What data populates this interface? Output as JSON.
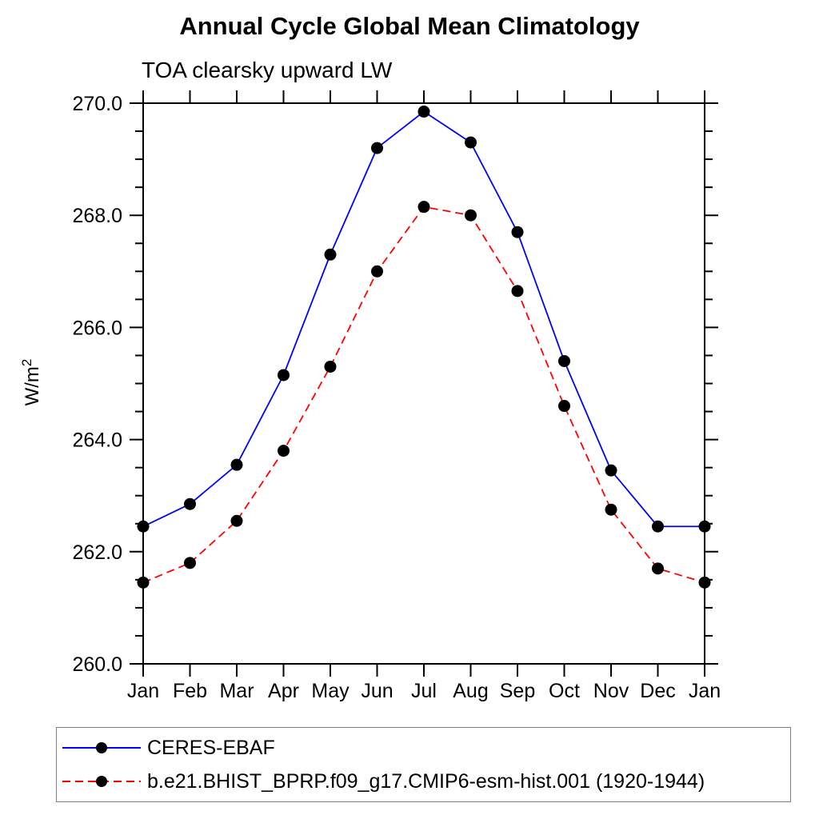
{
  "chart_data": {
    "type": "line",
    "title": "Annual Cycle Global Mean Climatology",
    "subtitle": "TOA clearsky upward LW",
    "ylabel": "W/m²",
    "ylabel_base": "W/m",
    "ylabel_exponent": "2",
    "categories": [
      "Jan",
      "Feb",
      "Mar",
      "Apr",
      "May",
      "Jun",
      "Jul",
      "Aug",
      "Sep",
      "Oct",
      "Nov",
      "Dec",
      "Jan"
    ],
    "ylim": [
      260.0,
      270.0
    ],
    "ytick_major_interval": 2.0,
    "ytick_minor_interval": 0.5,
    "ytick_labels": [
      "260.0",
      "262.0",
      "264.0",
      "266.0",
      "268.0",
      "270.0"
    ],
    "grid": false,
    "legend_position": "bottom-left-box",
    "axis_color": "#000000",
    "marker_color": "#000000",
    "series": [
      {
        "name": "CERES-EBAF",
        "color": "#0000ff",
        "line_style": "solid",
        "marker": "filled-circle",
        "values": [
          262.45,
          262.85,
          263.55,
          265.15,
          267.3,
          269.2,
          269.85,
          269.3,
          267.7,
          265.4,
          263.45,
          262.45,
          262.45
        ]
      },
      {
        "name": "b.e21.BHIST_BPRP.f09_g17.CMIP6-esm-hist.001 (1920-1944)",
        "color": "#ff0000",
        "line_style": "dashed",
        "marker": "filled-circle",
        "values": [
          261.45,
          261.8,
          262.55,
          263.8,
          265.3,
          267.0,
          268.15,
          268.0,
          266.65,
          264.6,
          262.75,
          261.7,
          261.45
        ]
      }
    ]
  }
}
